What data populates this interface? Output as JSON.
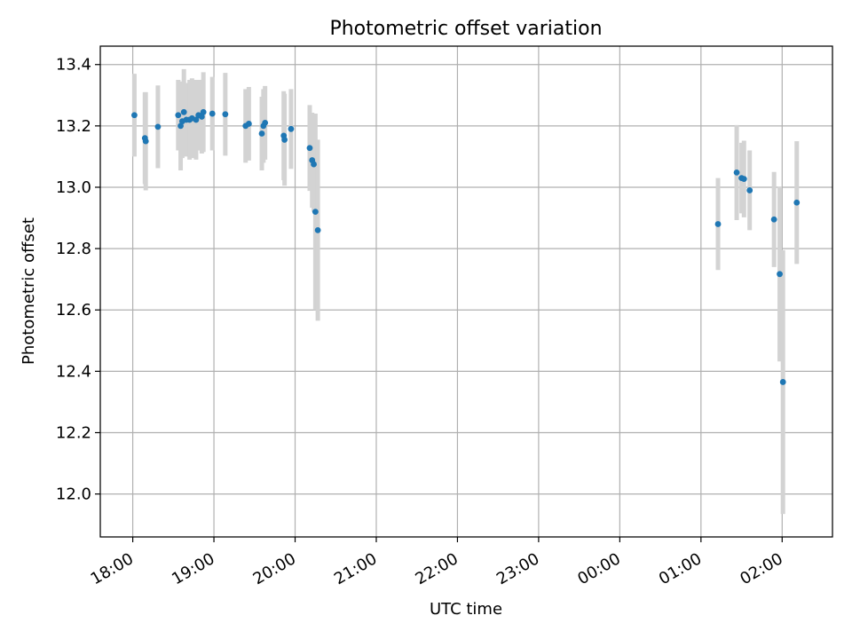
{
  "chart_data": {
    "type": "scatter",
    "title": "Photometric offset variation",
    "xlabel": "UTC time",
    "ylabel": "Photometric offset",
    "xlim_hours": [
      17.6,
      26.62
    ],
    "ylim": [
      11.86,
      13.46
    ],
    "grid": true,
    "x_tick_hours": [
      18,
      19,
      20,
      21,
      22,
      23,
      24,
      25,
      26
    ],
    "x_tick_labels": [
      "18:00",
      "19:00",
      "20:00",
      "21:00",
      "22:00",
      "23:00",
      "00:00",
      "01:00",
      "02:00"
    ],
    "y_ticks": [
      12.0,
      12.2,
      12.4,
      12.6,
      12.8,
      13.0,
      13.2,
      13.4
    ],
    "y_tick_labels": [
      "12.0",
      "12.2",
      "12.4",
      "12.6",
      "12.8",
      "13.0",
      "13.2",
      "13.4"
    ],
    "colors": {
      "point": "#1f77b4",
      "errorbar": "#d3d3d3",
      "grid": "#b0b0b0",
      "axis": "#000000"
    },
    "points": [
      {
        "x": 18.02,
        "y": 13.235,
        "err": 0.135
      },
      {
        "x": 18.15,
        "y": 13.16,
        "err": 0.15
      },
      {
        "x": 18.16,
        "y": 13.15,
        "err": 0.16
      },
      {
        "x": 18.31,
        "y": 13.197,
        "err": 0.135
      },
      {
        "x": 18.56,
        "y": 13.235,
        "err": 0.115
      },
      {
        "x": 18.59,
        "y": 13.2,
        "err": 0.145
      },
      {
        "x": 18.61,
        "y": 13.215,
        "err": 0.12
      },
      {
        "x": 18.63,
        "y": 13.245,
        "err": 0.14
      },
      {
        "x": 18.66,
        "y": 13.22,
        "err": 0.12
      },
      {
        "x": 18.7,
        "y": 13.22,
        "err": 0.13
      },
      {
        "x": 18.73,
        "y": 13.225,
        "err": 0.13
      },
      {
        "x": 18.78,
        "y": 13.22,
        "err": 0.13
      },
      {
        "x": 18.81,
        "y": 13.235,
        "err": 0.115
      },
      {
        "x": 18.85,
        "y": 13.23,
        "err": 0.12
      },
      {
        "x": 18.87,
        "y": 13.245,
        "err": 0.13
      },
      {
        "x": 18.98,
        "y": 13.24,
        "err": 0.12
      },
      {
        "x": 19.14,
        "y": 13.238,
        "err": 0.135
      },
      {
        "x": 19.39,
        "y": 13.2,
        "err": 0.12
      },
      {
        "x": 19.43,
        "y": 13.207,
        "err": 0.12
      },
      {
        "x": 19.59,
        "y": 13.175,
        "err": 0.12
      },
      {
        "x": 19.61,
        "y": 13.2,
        "err": 0.12
      },
      {
        "x": 19.63,
        "y": 13.21,
        "err": 0.12
      },
      {
        "x": 19.86,
        "y": 13.168,
        "err": 0.145
      },
      {
        "x": 19.87,
        "y": 13.155,
        "err": 0.15
      },
      {
        "x": 19.95,
        "y": 13.19,
        "err": 0.13
      },
      {
        "x": 20.18,
        "y": 13.128,
        "err": 0.14
      },
      {
        "x": 20.21,
        "y": 13.088,
        "err": 0.155
      },
      {
        "x": 20.23,
        "y": 13.075,
        "err": 0.155
      },
      {
        "x": 20.25,
        "y": 12.92,
        "err": 0.32
      },
      {
        "x": 20.28,
        "y": 12.86,
        "err": 0.295
      },
      {
        "x": 25.21,
        "y": 12.88,
        "err": 0.15
      },
      {
        "x": 25.44,
        "y": 13.048,
        "err": 0.155
      },
      {
        "x": 25.5,
        "y": 13.03,
        "err": 0.115
      },
      {
        "x": 25.53,
        "y": 13.027,
        "err": 0.125
      },
      {
        "x": 25.6,
        "y": 12.99,
        "err": 0.13
      },
      {
        "x": 25.9,
        "y": 12.895,
        "err": 0.155
      },
      {
        "x": 25.97,
        "y": 12.717,
        "err": 0.285
      },
      {
        "x": 26.01,
        "y": 12.365,
        "err": 0.43
      },
      {
        "x": 26.18,
        "y": 12.95,
        "err": 0.2
      }
    ]
  }
}
